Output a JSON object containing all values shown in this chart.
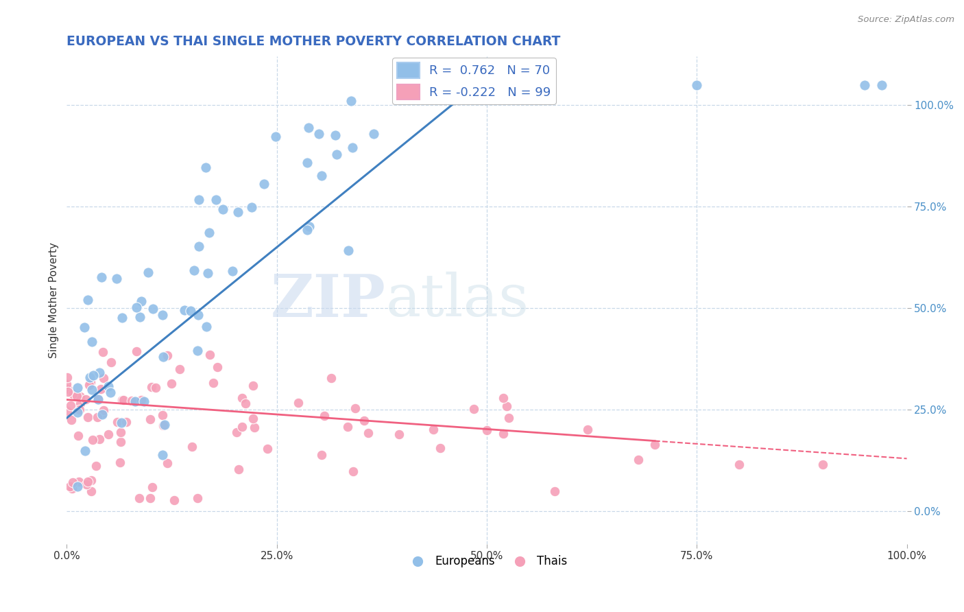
{
  "title": "EUROPEAN VS THAI SINGLE MOTHER POVERTY CORRELATION CHART",
  "source_text": "Source: ZipAtlas.com",
  "ylabel": "Single Mother Poverty",
  "watermark_zip": "ZIP",
  "watermark_atlas": "atlas",
  "legend_european": "Europeans",
  "legend_thai": "Thais",
  "r_european": 0.762,
  "n_european": 70,
  "r_thai": -0.222,
  "n_thai": 99,
  "european_color": "#92bfe8",
  "thai_color": "#f5a0b8",
  "european_line_color": "#4080c0",
  "thai_line_color": "#f06080",
  "background_color": "#ffffff",
  "grid_color": "#c8d8e8",
  "title_color": "#3a6abf",
  "y_tick_color": "#4a90c8",
  "xlim": [
    0.0,
    1.0
  ],
  "ylim": [
    -0.08,
    1.12
  ]
}
